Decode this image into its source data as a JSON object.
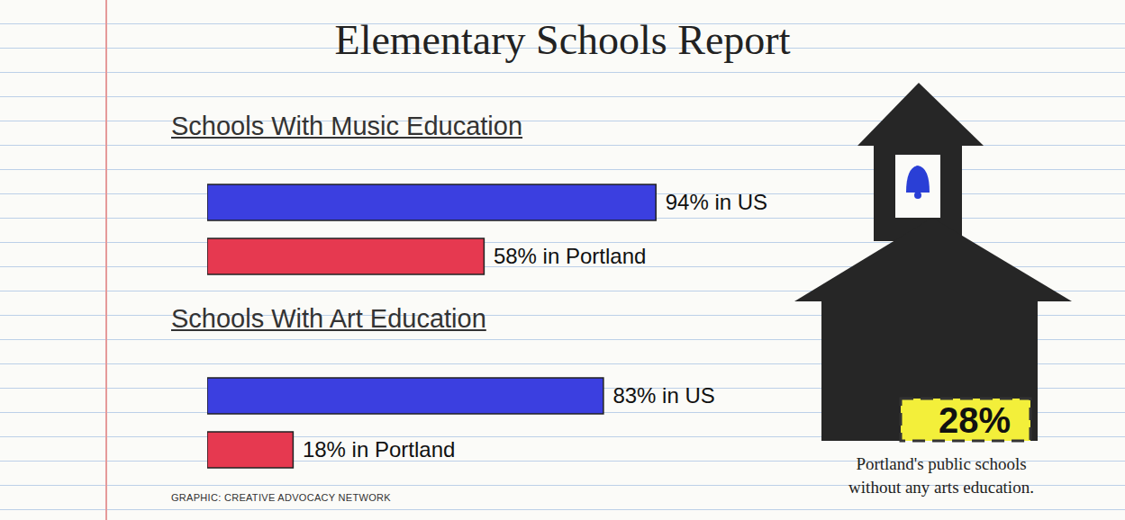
{
  "title": "Elementary Schools Report",
  "chart_data": [
    {
      "type": "bar",
      "orientation": "horizontal",
      "title": "Schools With Music Education",
      "categories": [
        "US",
        "Portland"
      ],
      "values": [
        94,
        58
      ],
      "value_labels": [
        "94% in US",
        "58% in Portland"
      ],
      "colors": [
        "#3b3fe0",
        "#e63950"
      ],
      "xlim": [
        0,
        100
      ],
      "data_labels": true,
      "tick_labels": false
    },
    {
      "type": "bar",
      "orientation": "horizontal",
      "title": "Schools With Art Education",
      "categories": [
        "US",
        "Portland"
      ],
      "values": [
        83,
        18
      ],
      "value_labels": [
        "83% in US",
        "18% in Portland"
      ],
      "colors": [
        "#3b3fe0",
        "#e63950"
      ],
      "xlim": [
        0,
        100
      ],
      "data_labels": true,
      "tick_labels": false
    }
  ],
  "callout": {
    "value": 28,
    "label": "28%",
    "text": [
      "Portland's public schools",
      "without any arts education."
    ]
  },
  "source": "GRAPHIC: CREATIVE ADVOCACY NETWORK"
}
